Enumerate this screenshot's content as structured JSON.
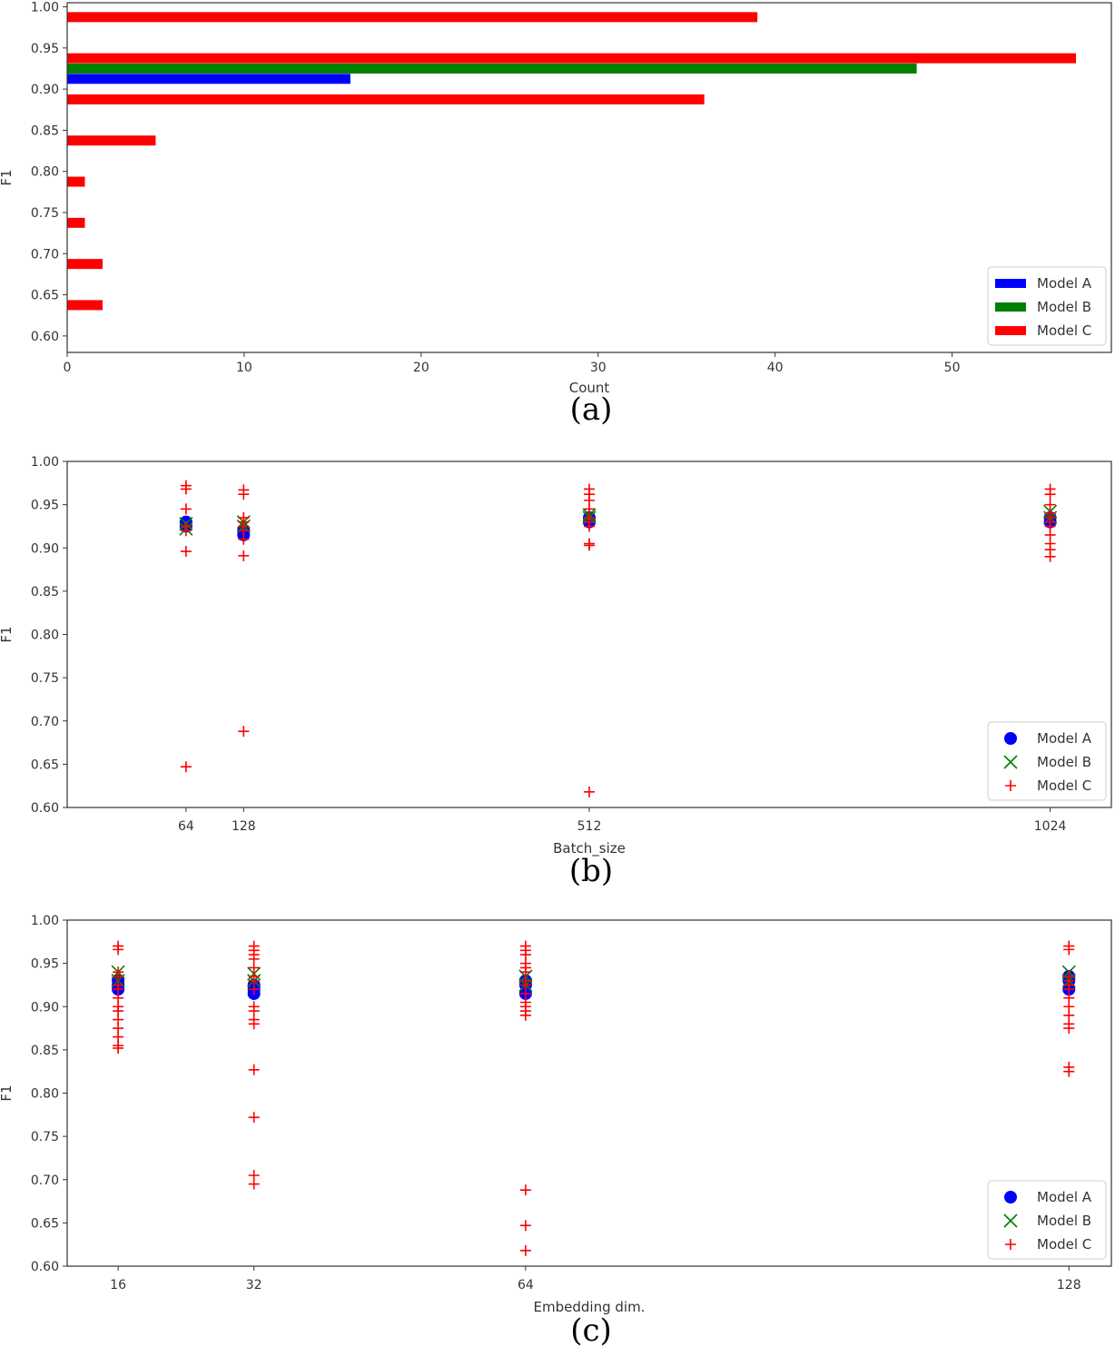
{
  "colors": {
    "model_a": "#0000ff",
    "model_b": "#008000",
    "model_c": "#ff0000"
  },
  "chart_data": [
    {
      "id": "a",
      "type": "bar",
      "orientation": "horizontal",
      "caption": "(a)",
      "xlabel": "Count",
      "ylabel": "F1",
      "xlim": [
        0,
        59
      ],
      "ylim": [
        0.58,
        1.005
      ],
      "xticks": [
        0,
        10,
        20,
        30,
        40,
        50
      ],
      "yticks": [
        0.6,
        0.65,
        0.7,
        0.75,
        0.8,
        0.85,
        0.9,
        0.95,
        1.0
      ],
      "legend": "lower-right",
      "series": [
        {
          "name": "Model A",
          "color_key": "model_a",
          "bins": [
            {
              "y": 0.9125,
              "count": 16
            }
          ]
        },
        {
          "name": "Model B",
          "color_key": "model_b",
          "bins": [
            {
              "y": 0.925,
              "count": 48
            }
          ]
        },
        {
          "name": "Model C",
          "color_key": "model_c",
          "bins": [
            {
              "y": 0.9875,
              "count": 39
            },
            {
              "y": 0.9375,
              "count": 57
            },
            {
              "y": 0.8875,
              "count": 36
            },
            {
              "y": 0.8375,
              "count": 5
            },
            {
              "y": 0.7875,
              "count": 1
            },
            {
              "y": 0.7375,
              "count": 1
            },
            {
              "y": 0.6875,
              "count": 2
            },
            {
              "y": 0.6375,
              "count": 2
            }
          ]
        }
      ]
    },
    {
      "id": "b",
      "type": "scatter",
      "caption": "(b)",
      "xlabel": "Batch_size",
      "ylabel": "F1",
      "categories": [
        "64",
        "128",
        "512",
        "1024"
      ],
      "category_positions": [
        64,
        128,
        512,
        1024
      ],
      "xlim": [
        -68,
        1092
      ],
      "ylim": [
        0.6,
        1.0
      ],
      "yticks": [
        0.6,
        0.65,
        0.7,
        0.75,
        0.8,
        0.85,
        0.9,
        0.95,
        1.0
      ],
      "legend": "lower-right",
      "series": [
        {
          "name": "Model A",
          "color_key": "model_a",
          "marker": "circle",
          "points": [
            [
              64,
              0.93
            ],
            [
              64,
              0.925
            ],
            [
              128,
              0.915
            ],
            [
              128,
              0.92
            ],
            [
              512,
              0.93
            ],
            [
              512,
              0.935
            ],
            [
              1024,
              0.93
            ],
            [
              1024,
              0.935
            ]
          ]
        },
        {
          "name": "Model B",
          "color_key": "model_b",
          "marker": "x",
          "points": [
            [
              64,
              0.922
            ],
            [
              64,
              0.928
            ],
            [
              128,
              0.925
            ],
            [
              128,
              0.93
            ],
            [
              512,
              0.935
            ],
            [
              512,
              0.938
            ],
            [
              1024,
              0.935
            ],
            [
              1024,
              0.942
            ]
          ]
        },
        {
          "name": "Model C",
          "color_key": "model_c",
          "marker": "plus",
          "points": [
            [
              64,
              0.972
            ],
            [
              64,
              0.968
            ],
            [
              64,
              0.945
            ],
            [
              64,
              0.925
            ],
            [
              64,
              0.92
            ],
            [
              64,
              0.896
            ],
            [
              64,
              0.647
            ],
            [
              128,
              0.967
            ],
            [
              128,
              0.962
            ],
            [
              128,
              0.935
            ],
            [
              128,
              0.93
            ],
            [
              128,
              0.925
            ],
            [
              128,
              0.92
            ],
            [
              128,
              0.91
            ],
            [
              128,
              0.891
            ],
            [
              128,
              0.688
            ],
            [
              512,
              0.968
            ],
            [
              512,
              0.962
            ],
            [
              512,
              0.955
            ],
            [
              512,
              0.945
            ],
            [
              512,
              0.935
            ],
            [
              512,
              0.93
            ],
            [
              512,
              0.925
            ],
            [
              512,
              0.905
            ],
            [
              512,
              0.903
            ],
            [
              512,
              0.618
            ],
            [
              1024,
              0.968
            ],
            [
              1024,
              0.962
            ],
            [
              1024,
              0.95
            ],
            [
              1024,
              0.94
            ],
            [
              1024,
              0.935
            ],
            [
              1024,
              0.93
            ],
            [
              1024,
              0.925
            ],
            [
              1024,
              0.915
            ],
            [
              1024,
              0.905
            ],
            [
              1024,
              0.898
            ],
            [
              1024,
              0.89
            ]
          ]
        }
      ]
    },
    {
      "id": "c",
      "type": "scatter",
      "caption": "(c)",
      "xlabel": "Embedding dim.",
      "ylabel": "F1",
      "categories": [
        "16",
        "32",
        "64",
        "128"
      ],
      "category_positions": [
        16,
        32,
        64,
        128
      ],
      "xlim": [
        10,
        133
      ],
      "ylim": [
        0.6,
        1.0
      ],
      "yticks": [
        0.6,
        0.65,
        0.7,
        0.75,
        0.8,
        0.85,
        0.9,
        0.95,
        1.0
      ],
      "legend": "lower-right",
      "series": [
        {
          "name": "Model A",
          "color_key": "model_a",
          "marker": "circle",
          "points": [
            [
              16,
              0.92
            ],
            [
              16,
              0.925
            ],
            [
              16,
              0.93
            ],
            [
              32,
              0.915
            ],
            [
              32,
              0.92
            ],
            [
              32,
              0.925
            ],
            [
              64,
              0.915
            ],
            [
              64,
              0.925
            ],
            [
              64,
              0.93
            ],
            [
              128,
              0.92
            ],
            [
              128,
              0.93
            ],
            [
              128,
              0.935
            ]
          ]
        },
        {
          "name": "Model B",
          "color_key": "model_b",
          "marker": "x",
          "points": [
            [
              16,
              0.93
            ],
            [
              16,
              0.94
            ],
            [
              32,
              0.93
            ],
            [
              32,
              0.938
            ],
            [
              64,
              0.925
            ],
            [
              64,
              0.935
            ],
            [
              128,
              0.93
            ],
            [
              128,
              0.94
            ]
          ]
        },
        {
          "name": "Model C",
          "color_key": "model_c",
          "marker": "plus",
          "points": [
            [
              16,
              0.97
            ],
            [
              16,
              0.966
            ],
            [
              16,
              0.94
            ],
            [
              16,
              0.935
            ],
            [
              16,
              0.925
            ],
            [
              16,
              0.92
            ],
            [
              16,
              0.91
            ],
            [
              16,
              0.9
            ],
            [
              16,
              0.895
            ],
            [
              16,
              0.885
            ],
            [
              16,
              0.875
            ],
            [
              16,
              0.865
            ],
            [
              16,
              0.855
            ],
            [
              16,
              0.852
            ],
            [
              32,
              0.97
            ],
            [
              32,
              0.965
            ],
            [
              32,
              0.96
            ],
            [
              32,
              0.955
            ],
            [
              32,
              0.945
            ],
            [
              32,
              0.935
            ],
            [
              32,
              0.93
            ],
            [
              32,
              0.92
            ],
            [
              32,
              0.9
            ],
            [
              32,
              0.895
            ],
            [
              32,
              0.885
            ],
            [
              32,
              0.88
            ],
            [
              32,
              0.827
            ],
            [
              32,
              0.772
            ],
            [
              32,
              0.705
            ],
            [
              32,
              0.695
            ],
            [
              64,
              0.97
            ],
            [
              64,
              0.965
            ],
            [
              64,
              0.96
            ],
            [
              64,
              0.95
            ],
            [
              64,
              0.945
            ],
            [
              64,
              0.94
            ],
            [
              64,
              0.93
            ],
            [
              64,
              0.925
            ],
            [
              64,
              0.915
            ],
            [
              64,
              0.905
            ],
            [
              64,
              0.9
            ],
            [
              64,
              0.895
            ],
            [
              64,
              0.89
            ],
            [
              64,
              0.688
            ],
            [
              64,
              0.647
            ],
            [
              64,
              0.618
            ],
            [
              128,
              0.97
            ],
            [
              128,
              0.966
            ],
            [
              128,
              0.935
            ],
            [
              128,
              0.93
            ],
            [
              128,
              0.925
            ],
            [
              128,
              0.92
            ],
            [
              128,
              0.91
            ],
            [
              128,
              0.9
            ],
            [
              128,
              0.89
            ],
            [
              128,
              0.88
            ],
            [
              128,
              0.875
            ],
            [
              128,
              0.83
            ],
            [
              128,
              0.825
            ]
          ]
        }
      ]
    }
  ]
}
